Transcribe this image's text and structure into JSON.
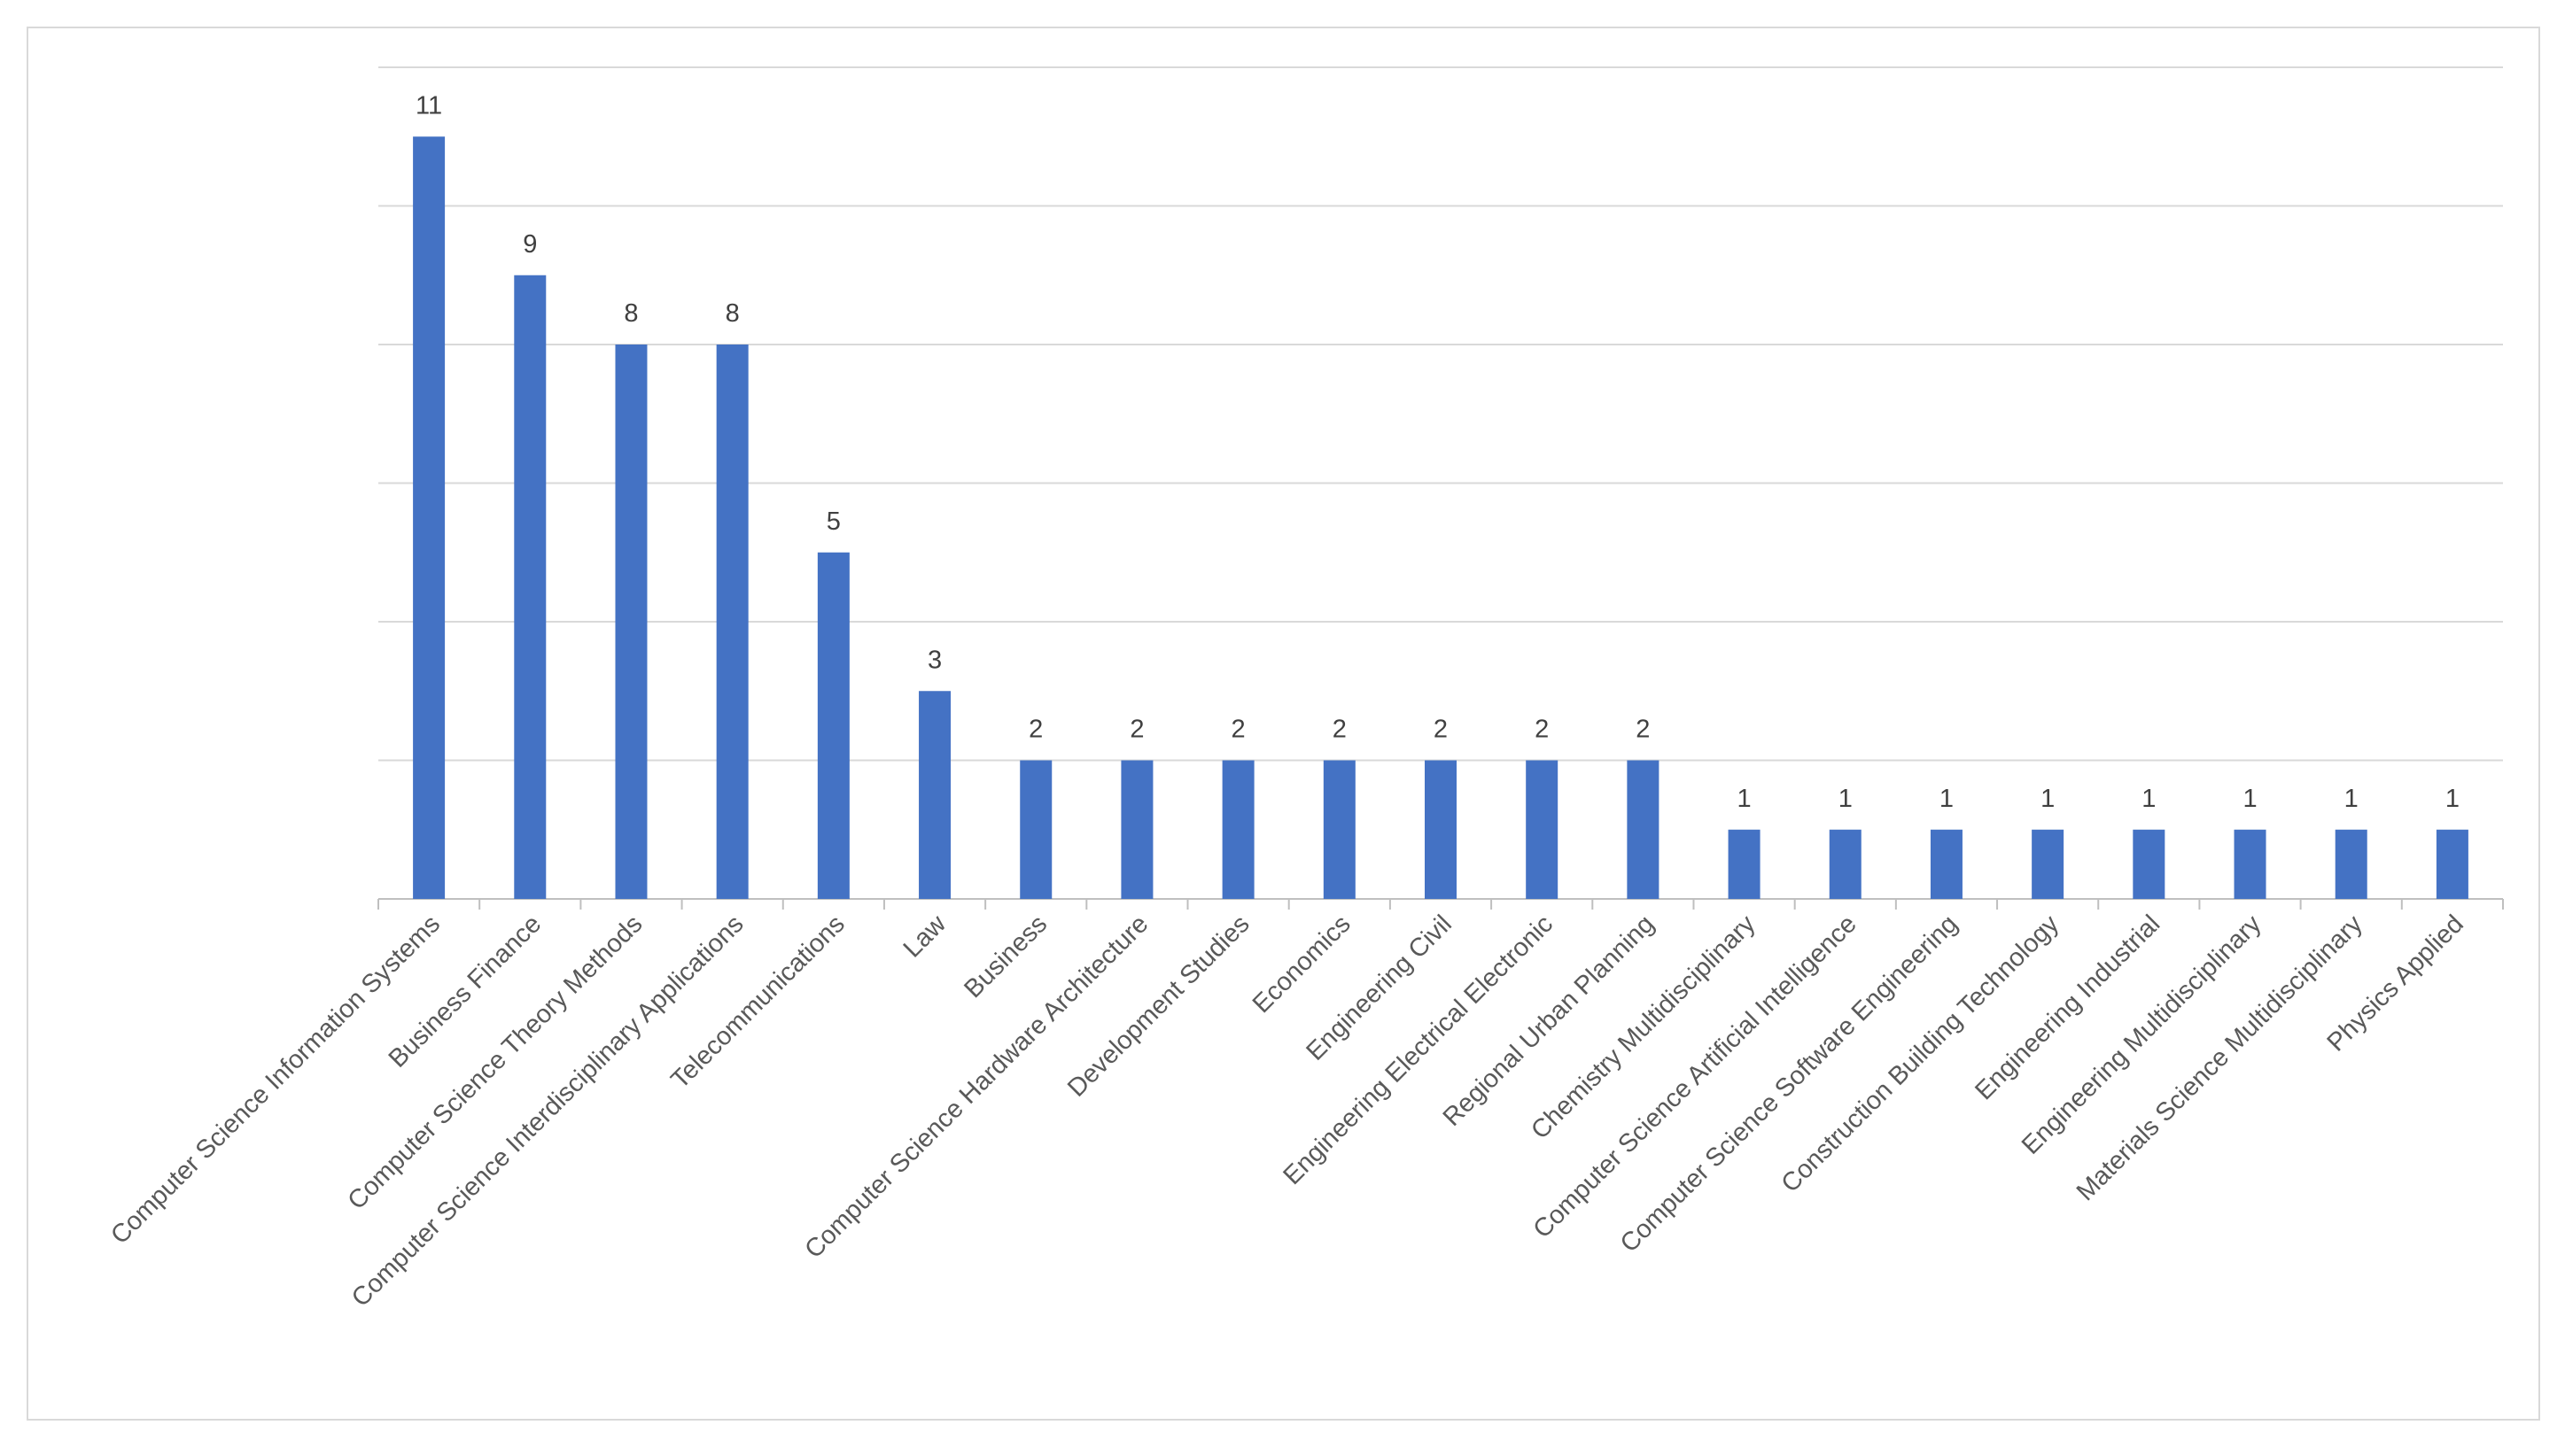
{
  "chart_data": {
    "type": "bar",
    "title": "",
    "xlabel": "",
    "ylabel": "",
    "ylim": [
      0,
      12
    ],
    "y_gridlines": [
      0,
      2,
      4,
      6,
      8,
      10,
      12
    ],
    "y_tick_labels_shown": false,
    "grid": true,
    "legend": "none",
    "bar_color": "#4472c4",
    "data_labels_shown": true,
    "categories": [
      "Computer Science Information Systems",
      "Business Finance",
      "Computer Science Theory Methods",
      "Computer Science Interdisciplinary Applications",
      "Telecommunications",
      "Law",
      "Business",
      "Computer Science Hardware Architecture",
      "Development Studies",
      "Economics",
      "Engineering Civil",
      "Engineering Electrical Electronic",
      "Regional Urban Planning",
      "Chemistry Multidisciplinary",
      "Computer Science Artificial Intelligence",
      "Computer Science Software Engineering",
      "Construction Building Technology",
      "Engineering Industrial",
      "Engineering Multidisciplinary",
      "Materials Science Multidisciplinary",
      "Physics Applied"
    ],
    "values": [
      11,
      9,
      8,
      8,
      5,
      3,
      2,
      2,
      2,
      2,
      2,
      2,
      2,
      1,
      1,
      1,
      1,
      1,
      1,
      1,
      1
    ]
  }
}
